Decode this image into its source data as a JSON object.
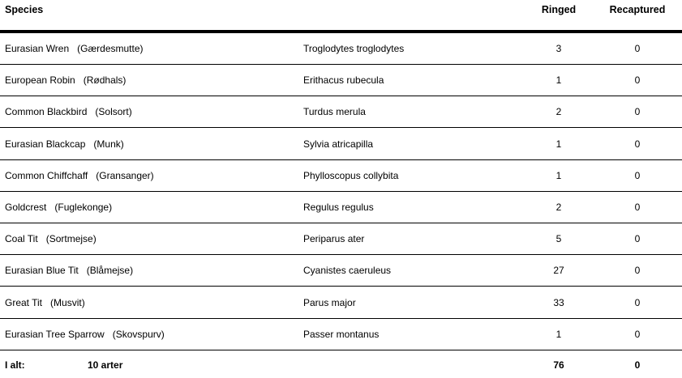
{
  "header": {
    "species": "Species",
    "ringed": "Ringed",
    "recaptured": "Recaptured"
  },
  "rows": [
    {
      "name": "Eurasian Wren",
      "local": "(Gærdesmutte)",
      "scientific": "Troglodytes troglodytes",
      "ringed": "3",
      "recaptured": "0"
    },
    {
      "name": "European Robin",
      "local": "(Rødhals)",
      "scientific": "Erithacus rubecula",
      "ringed": "1",
      "recaptured": "0"
    },
    {
      "name": "Common Blackbird",
      "local": "(Solsort)",
      "scientific": "Turdus merula",
      "ringed": "2",
      "recaptured": "0"
    },
    {
      "name": "Eurasian Blackcap",
      "local": "(Munk)",
      "scientific": "Sylvia atricapilla",
      "ringed": "1",
      "recaptured": "0"
    },
    {
      "name": "Common Chiffchaff",
      "local": "(Gransanger)",
      "scientific": "Phylloscopus collybita",
      "ringed": "1",
      "recaptured": "0"
    },
    {
      "name": "Goldcrest",
      "local": "(Fuglekonge)",
      "scientific": "Regulus regulus",
      "ringed": "2",
      "recaptured": "0"
    },
    {
      "name": "Coal Tit",
      "local": "(Sortmejse)",
      "scientific": "Periparus ater",
      "ringed": "5",
      "recaptured": "0"
    },
    {
      "name": "Eurasian Blue Tit",
      "local": "(Blåmejse)",
      "scientific": "Cyanistes caeruleus",
      "ringed": "27",
      "recaptured": "0"
    },
    {
      "name": "Great Tit",
      "local": "(Musvit)",
      "scientific": "Parus major",
      "ringed": "33",
      "recaptured": "0"
    },
    {
      "name": "Eurasian Tree Sparrow",
      "local": "(Skovspurv)",
      "scientific": "Passer montanus",
      "ringed": "1",
      "recaptured": "0"
    }
  ],
  "footer": {
    "label": "I alt:",
    "species_count": "10 arter",
    "ringed_total": "76",
    "recaptured_total": "0"
  }
}
